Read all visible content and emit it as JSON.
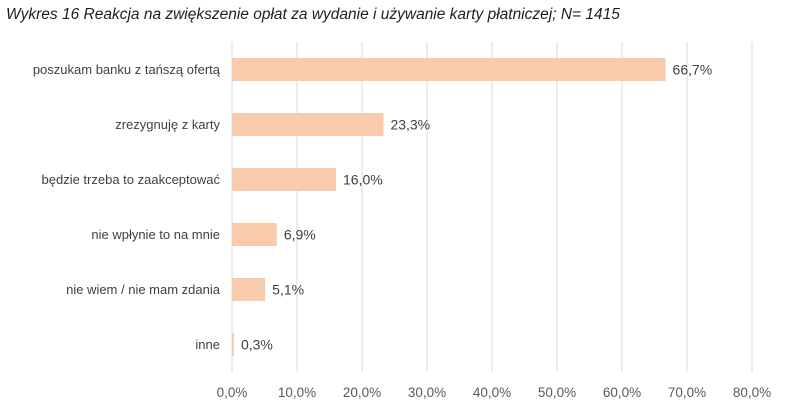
{
  "chart_data": {
    "type": "bar",
    "orientation": "horizontal",
    "title": "Wykres 16 Reakcja na zwiększenie opłat za wydanie i używanie karty płatniczej; N= 1415",
    "categories": [
      "poszukam banku z tańszą ofertą",
      "zrezygnuję z karty",
      "będzie trzeba to zaakceptować",
      "nie wpłynie to na mnie",
      "nie wiem / nie mam zdania",
      "inne"
    ],
    "values": [
      66.7,
      23.3,
      16.0,
      6.9,
      5.1,
      0.3
    ],
    "value_labels": [
      "66,7%",
      "23,3%",
      "16,0%",
      "6,9%",
      "5,1%",
      "0,3%"
    ],
    "xlim": [
      0,
      80
    ],
    "x_ticks": [
      "0,0%",
      "10,0%",
      "20,0%",
      "30,0%",
      "40,0%",
      "50,0%",
      "60,0%",
      "70,0%",
      "80,0%"
    ],
    "grid": true,
    "legend": "none",
    "bar_color": "#f8cbad"
  }
}
